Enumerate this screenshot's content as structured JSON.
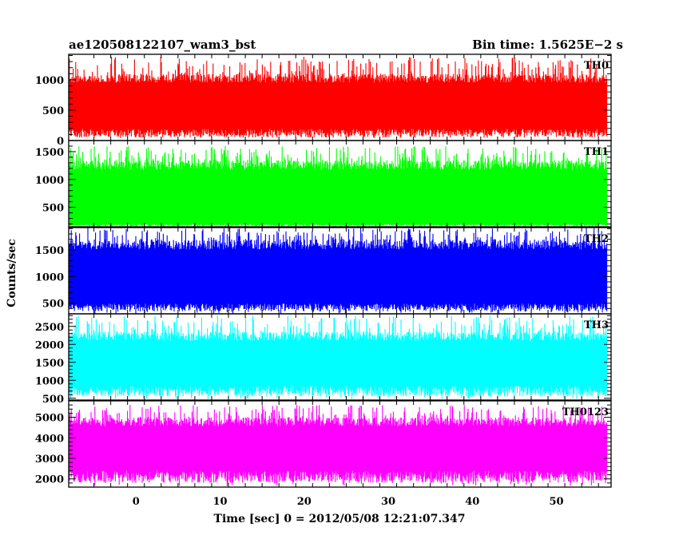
{
  "chart_data": {
    "type": "line",
    "title": "ae120508122107_wam3_bst",
    "subtitle": "Bin time: 1.5625E−2 s",
    "xlabel": "Time [sec] 0 = 2012/05/08 12:21:07.347",
    "ylabel": "Counts/sec",
    "xlim": [
      -8,
      56.5
    ],
    "xticks": [
      0,
      10,
      20,
      30,
      40,
      50
    ],
    "x_range_data": [
      -8,
      56
    ],
    "bin_time": 0.015625,
    "grid": false,
    "panels": [
      {
        "name": "TH0",
        "color": "#ff0000",
        "ylim": [
          0,
          1420
        ],
        "yticks": [
          0,
          500,
          1000
        ],
        "typical_low": 120,
        "typical_high": 1100,
        "spike_low": 40,
        "spike_high": 1380
      },
      {
        "name": "TH1",
        "color": "#00ff00",
        "ylim": [
          150,
          1700
        ],
        "yticks": [
          500,
          1000,
          1500
        ],
        "typical_low": 180,
        "typical_high": 1350,
        "spike_low": 120,
        "spike_high": 1600
      },
      {
        "name": "TH2",
        "color": "#0000ff",
        "ylim": [
          300,
          1920
        ],
        "yticks": [
          500,
          1000,
          1500
        ],
        "typical_low": 420,
        "typical_high": 1700,
        "spike_low": 300,
        "spike_high": 1920
      },
      {
        "name": "TH3",
        "color": "#00ffff",
        "ylim": [
          450,
          2850
        ],
        "yticks": [
          500,
          1000,
          1500,
          2000,
          2500
        ],
        "typical_low": 700,
        "typical_high": 2350,
        "spike_low": 480,
        "spike_high": 2800
      },
      {
        "name": "TH0123",
        "color": "#ff00ff",
        "ylim": [
          1600,
          5800
        ],
        "yticks": [
          2000,
          3000,
          4000,
          5000
        ],
        "typical_low": 2100,
        "typical_high": 5000,
        "spike_low": 1650,
        "spike_high": 5600
      }
    ]
  }
}
